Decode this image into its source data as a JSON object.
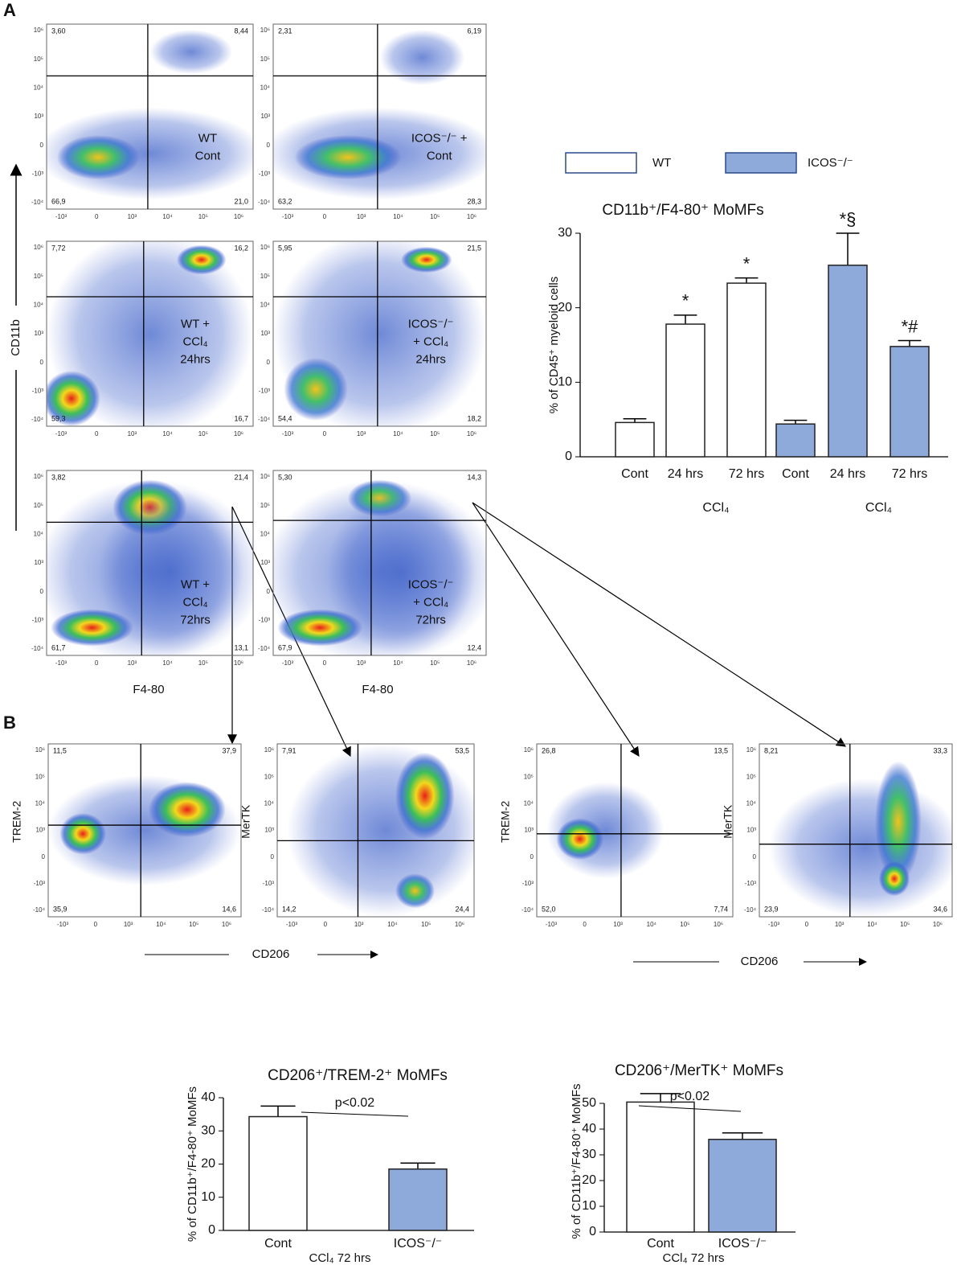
{
  "panel_labels": [
    "A",
    "B"
  ],
  "flow_axis_ticks": {
    "y": [
      "10⁶",
      "10⁵",
      "10⁴",
      "10³",
      "0",
      "-10³",
      "-10⁴"
    ],
    "x": [
      "-10³",
      "0",
      "10³",
      "10⁴",
      "10⁵",
      "10⁶"
    ]
  },
  "axis_labels": {
    "cd11b": "CD11b",
    "f480": "F4-80",
    "cd206": "CD206",
    "trem2": "TREM-2",
    "mertk": "MerTK"
  },
  "flow_plots": [
    {
      "quadrants": [
        "3,60",
        "8,44",
        "66,9",
        "21,0"
      ],
      "label": [
        "WT",
        "Cont"
      ]
    },
    {
      "quadrants": [
        "2,31",
        "6,19",
        "63,2",
        "28,3"
      ],
      "label": [
        "ICOS⁻/⁻ +",
        "Cont"
      ]
    },
    {
      "quadrants": [
        "7,72",
        "16,2",
        "59,3",
        "16,7"
      ],
      "label": [
        "WT +",
        "CCl₄",
        "24hrs"
      ]
    },
    {
      "quadrants": [
        "5,95",
        "21,5",
        "54,4",
        "18,2"
      ],
      "label": [
        "ICOS⁻/⁻",
        "+ CCl₄",
        "24hrs"
      ]
    },
    {
      "quadrants": [
        "3,82",
        "21,4",
        "61,7",
        "13,1"
      ],
      "label": [
        "WT +",
        "CCl₄",
        "72hrs"
      ]
    },
    {
      "quadrants": [
        "5,30",
        "14,3",
        "67,9",
        "12,4"
      ],
      "label": [
        "ICOS⁻/⁻",
        "+ CCl₄",
        "72hrs"
      ]
    },
    {
      "quadrants": [
        "11,5",
        "37,9",
        "35,9",
        "14,6"
      ]
    },
    {
      "quadrants": [
        "7,91",
        "53,5",
        "14,2",
        "24,4"
      ]
    },
    {
      "quadrants": [
        "26,8",
        "13,5",
        "52,0",
        "7,74"
      ]
    },
    {
      "quadrants": [
        "8,21",
        "33,3",
        "23,9",
        "34,6"
      ]
    }
  ],
  "chart_data": [
    {
      "type": "bar",
      "title": "CD11b⁺/F4-80⁺ MoMFs",
      "y_label": "% of CD45⁺ myeloid cells",
      "categories": [
        "Cont",
        "24 hrs",
        "72 hrs",
        "Cont",
        "24 hrs",
        "72 hrs"
      ],
      "values": [
        4.6,
        17.8,
        23.3,
        4.4,
        25.7,
        14.8
      ],
      "errors": [
        0.5,
        1.2,
        0.7,
        0.5,
        4.3,
        0.8
      ],
      "colors": [
        "#ffffff",
        "#ffffff",
        "#ffffff",
        "#8eaadb",
        "#8eaadb",
        "#8eaadb"
      ],
      "bar_annotations": [
        null,
        "*",
        "*",
        null,
        "*§",
        "*#"
      ],
      "group_labels": [
        null,
        "CCl₄",
        null,
        null,
        "CCl₄",
        null
      ],
      "legend": [
        {
          "name": "WT",
          "color": "#ffffff"
        },
        {
          "name": "ICOS⁻/⁻",
          "color": "#8eaadb"
        }
      ],
      "ylim": [
        0,
        30
      ],
      "yticks": [
        0,
        10,
        20,
        30
      ]
    },
    {
      "type": "bar",
      "title": "CD206⁺/TREM-2⁺ MoMFs",
      "y_label": "% of CD11b⁺/F4-80⁺ MoMFs",
      "x_label": "CCl₄ 72 hrs",
      "categories": [
        "Cont",
        "ICOS⁻/⁻"
      ],
      "values": [
        34.3,
        18.5
      ],
      "errors": [
        3.2,
        1.8
      ],
      "colors": [
        "#ffffff",
        "#8eaadb"
      ],
      "annotation": "p<0.02",
      "ylim": [
        0,
        40
      ],
      "yticks": [
        0,
        10,
        20,
        30,
        40
      ]
    },
    {
      "type": "bar",
      "title": "CD206⁺/MerTK⁺ MoMFs",
      "y_label": "% of CD11b⁺/F4-80⁺ MoMFs",
      "x_label": "CCl₄ 72 hrs",
      "categories": [
        "Cont",
        "ICOS⁻/⁻"
      ],
      "values": [
        50.5,
        36.0
      ],
      "errors": [
        3.3,
        2.5
      ],
      "colors": [
        "#ffffff",
        "#8eaadb"
      ],
      "annotation": "p<0.02",
      "ylim": [
        0,
        55
      ],
      "yticks": [
        0,
        10,
        20,
        30,
        40,
        50
      ]
    }
  ]
}
